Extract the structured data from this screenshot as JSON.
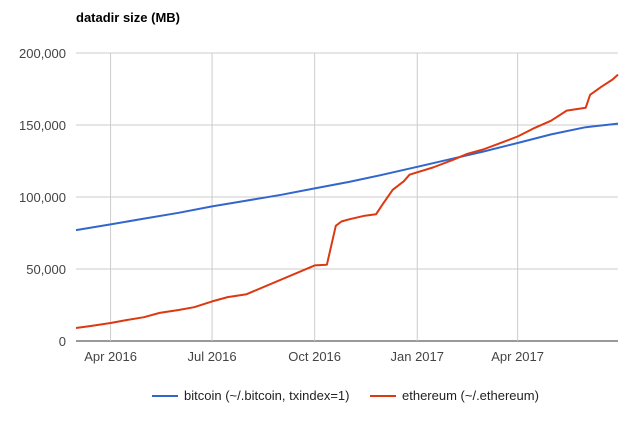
{
  "chart_data": {
    "type": "line",
    "title": "datadir size (MB)",
    "xlabel": "",
    "ylabel": "",
    "ylim": [
      0,
      200000
    ],
    "y_ticks": [
      0,
      50000,
      100000,
      150000,
      200000
    ],
    "y_tick_labels": [
      "0",
      "50,000",
      "100,000",
      "150,000",
      "200,000"
    ],
    "x_range": [
      "2016-03-01",
      "2017-06-30"
    ],
    "x_ticks": [
      "2016-04-01",
      "2016-07-01",
      "2016-10-01",
      "2017-01-01",
      "2017-04-01"
    ],
    "x_tick_labels": [
      "Apr 2016",
      "Jul 2016",
      "Oct 2016",
      "Jan 2017",
      "Apr 2017"
    ],
    "grid": true,
    "legend_position": "bottom",
    "series": [
      {
        "name": "bitcoin (~/.bitcoin, txindex=1)",
        "color": "#3366cc",
        "points": [
          [
            "2016-03-01",
            77000
          ],
          [
            "2016-04-01",
            81000
          ],
          [
            "2016-05-01",
            85000
          ],
          [
            "2016-06-01",
            89000
          ],
          [
            "2016-07-01",
            93500
          ],
          [
            "2016-08-01",
            97500
          ],
          [
            "2016-09-01",
            101500
          ],
          [
            "2016-10-01",
            106000
          ],
          [
            "2016-11-01",
            110500
          ],
          [
            "2016-12-01",
            115500
          ],
          [
            "2017-01-01",
            121000
          ],
          [
            "2017-02-01",
            126500
          ],
          [
            "2017-03-01",
            131500
          ],
          [
            "2017-04-01",
            137500
          ],
          [
            "2017-05-01",
            143500
          ],
          [
            "2017-06-01",
            148500
          ],
          [
            "2017-06-30",
            151000
          ]
        ]
      },
      {
        "name": "ethereum (~/.ethereum)",
        "color": "#dc3912",
        "points": [
          [
            "2016-03-01",
            9000
          ],
          [
            "2016-03-15",
            10500
          ],
          [
            "2016-04-01",
            12500
          ],
          [
            "2016-04-15",
            14500
          ],
          [
            "2016-05-01",
            16500
          ],
          [
            "2016-05-15",
            19500
          ],
          [
            "2016-06-01",
            21500
          ],
          [
            "2016-06-15",
            23500
          ],
          [
            "2016-07-01",
            27500
          ],
          [
            "2016-07-15",
            30500
          ],
          [
            "2016-08-01",
            32500
          ],
          [
            "2016-10-01",
            52500
          ],
          [
            "2016-10-12",
            53000
          ],
          [
            "2016-10-20",
            80000
          ],
          [
            "2016-10-25",
            83000
          ],
          [
            "2016-11-01",
            84500
          ],
          [
            "2016-11-15",
            87000
          ],
          [
            "2016-11-25",
            88000
          ],
          [
            "2016-12-01",
            95000
          ],
          [
            "2016-12-10",
            105000
          ],
          [
            "2016-12-20",
            111000
          ],
          [
            "2016-12-25",
            115500
          ],
          [
            "2017-01-15",
            120500
          ],
          [
            "2017-02-01",
            125500
          ],
          [
            "2017-02-15",
            130000
          ],
          [
            "2017-03-01",
            133000
          ],
          [
            "2017-03-15",
            137000
          ],
          [
            "2017-04-01",
            142000
          ],
          [
            "2017-04-15",
            147500
          ],
          [
            "2017-05-01",
            153000
          ],
          [
            "2017-05-15",
            160000
          ],
          [
            "2017-06-01",
            162000
          ],
          [
            "2017-06-05",
            171000
          ],
          [
            "2017-06-15",
            176500
          ],
          [
            "2017-06-25",
            181500
          ],
          [
            "2017-06-30",
            185000
          ]
        ]
      }
    ]
  }
}
